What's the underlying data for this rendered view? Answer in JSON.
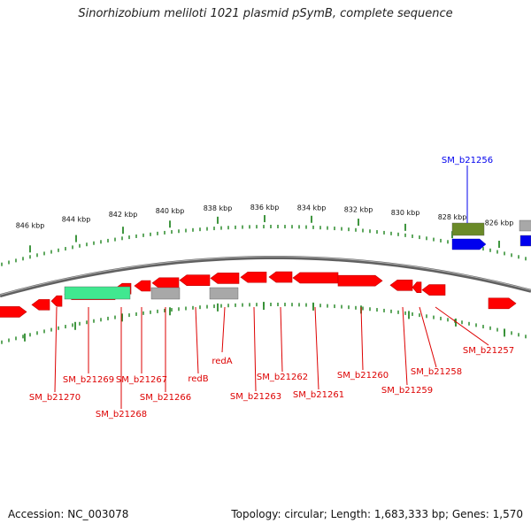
{
  "title": "Sinorhizobium meliloti 1021 plasmid pSymB, complete sequence",
  "footer": {
    "accession": "Accession: NC_003078",
    "topology": "Topology: circular; Length: 1,683,333 bp; Genes: 1,570"
  },
  "scale_ticks": [
    "846 kbp",
    "844 kbp",
    "842 kbp",
    "840 kbp",
    "838 kbp",
    "836 kbp",
    "834 kbp",
    "832 kbp",
    "830 kbp",
    "828 kbp",
    "826 kbp"
  ],
  "gene_labels": [
    "SM_b21256",
    "SM_b21257",
    "SM_b21258",
    "SM_b21259",
    "SM_b21260",
    "SM_b21261",
    "SM_b21262",
    "SM_b21263",
    "redA",
    "redB",
    "SM_b21266",
    "SM_b21267",
    "SM_b21268",
    "SM_b21269",
    "SM_b21270"
  ],
  "colors": {
    "cds": "#ff0000",
    "rna": "#40e890",
    "pseudo": "#a8a8a8",
    "feature_green": "#6a8a28",
    "feature_blue": "#0000ee",
    "tick": "#2a8a2a",
    "backbone": "#808080"
  }
}
